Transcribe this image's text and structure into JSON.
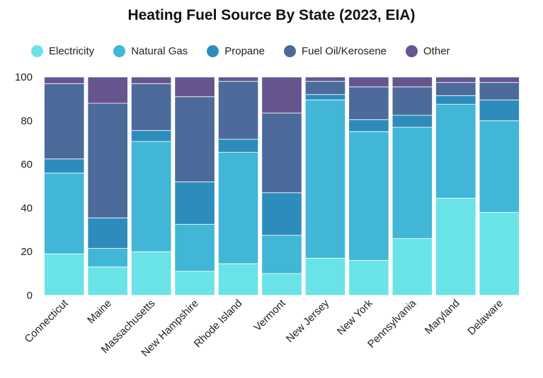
{
  "chart_data": {
    "type": "bar",
    "stacked": true,
    "title": "Heating Fuel Source By State (2023, EIA)",
    "xlabel": "",
    "ylabel": "",
    "ylim": [
      0,
      100
    ],
    "yticks": [
      "0",
      "20",
      "40",
      "60",
      "80",
      "100"
    ],
    "legend_position": "top",
    "categories": [
      "Connecticut",
      "Maine",
      "Massachusetts",
      "New Hampshire",
      "Rhode Island",
      "Vermont",
      "New Jersey",
      "New York",
      "Pennsylvania",
      "Maryland",
      "Delaware"
    ],
    "series": [
      {
        "name": "Electricity",
        "color": "#6ae3e8",
        "values": [
          19,
          13,
          20,
          11,
          14.5,
          10,
          17,
          16,
          26,
          44.5,
          38
        ]
      },
      {
        "name": "Natural Gas",
        "color": "#42b6d6",
        "values": [
          37,
          8.5,
          50.5,
          21.5,
          51,
          17.5,
          72.5,
          59,
          51,
          43,
          42
        ]
      },
      {
        "name": "Propane",
        "color": "#2e8cbd",
        "values": [
          6.5,
          14,
          5,
          19.5,
          6,
          19.5,
          2.5,
          5.5,
          5.5,
          4,
          9.5
        ]
      },
      {
        "name": "Fuel Oil/Kerosene",
        "color": "#4c6a9a",
        "values": [
          34.5,
          52.5,
          21.5,
          39,
          26.5,
          36.5,
          6,
          15,
          13,
          6,
          8
        ]
      },
      {
        "name": "Other",
        "color": "#66558f",
        "values": [
          3,
          12,
          3,
          9,
          2,
          16.5,
          2,
          4.5,
          4.5,
          2.5,
          2.5
        ]
      }
    ]
  }
}
